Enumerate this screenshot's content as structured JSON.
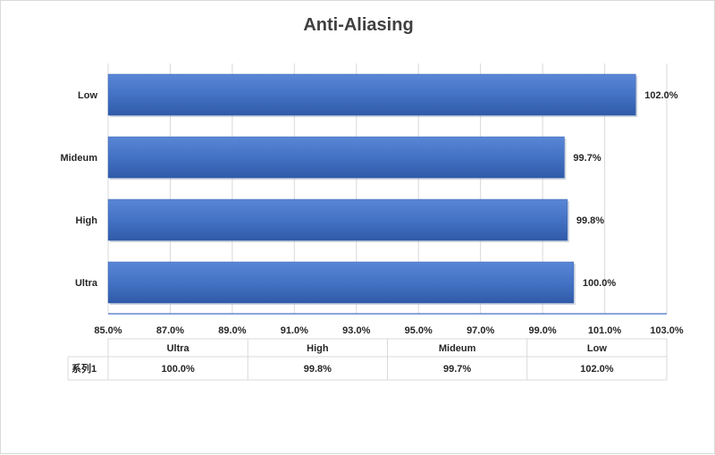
{
  "chart_data": {
    "type": "bar",
    "orientation": "horizontal",
    "title": "Anti-Aliasing",
    "categories": [
      "Ultra",
      "High",
      "Mideum",
      "Low"
    ],
    "series": [
      {
        "name": "系列1",
        "values": [
          100.0,
          99.8,
          99.7,
          102.0
        ],
        "color": "#4472c4"
      }
    ],
    "data_labels": [
      "100.0%",
      "99.8%",
      "99.7%",
      "102.0%"
    ],
    "xlim": [
      85.0,
      103.0
    ],
    "x_ticks": [
      85.0,
      87.0,
      89.0,
      91.0,
      93.0,
      95.0,
      97.0,
      99.0,
      101.0,
      103.0
    ],
    "x_tick_labels": [
      "85.0%",
      "87.0%",
      "89.0%",
      "91.0%",
      "93.0%",
      "95.0%",
      "97.0%",
      "99.0%",
      "101.0%",
      "103.0%"
    ],
    "grid": true,
    "data_table": true,
    "xlabel": "",
    "ylabel": ""
  }
}
